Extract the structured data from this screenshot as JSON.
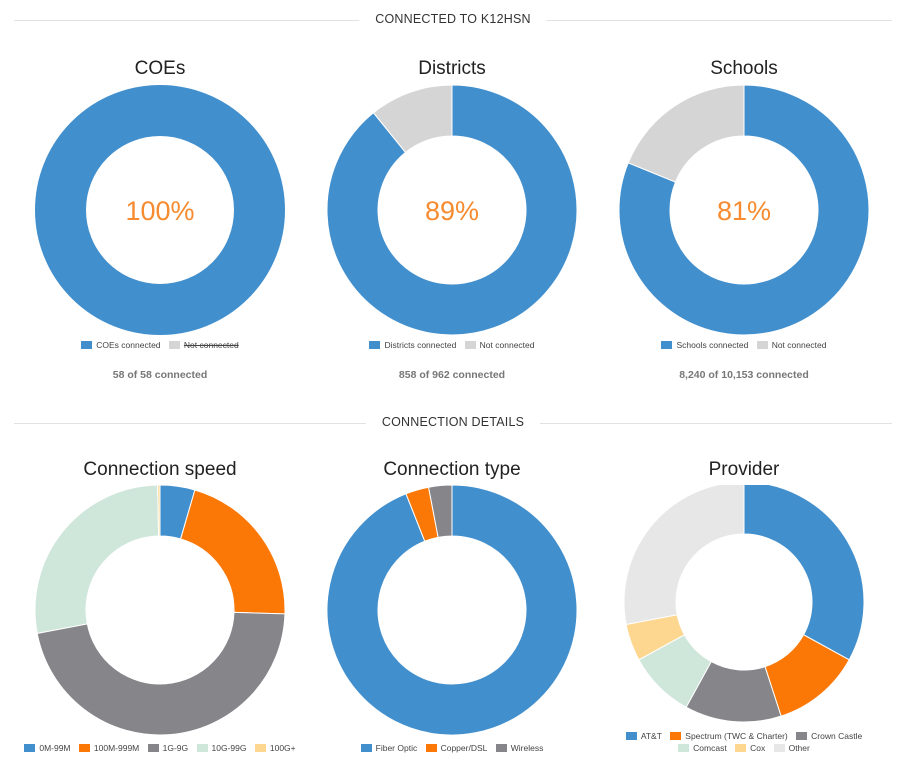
{
  "sections": {
    "top_title": "CONNECTED TO K12HSN",
    "bottom_title": "CONNECTION DETAILS"
  },
  "colors": {
    "blue": "#428fcd",
    "gray_light": "#d5d5d5",
    "orange": "#fb7806",
    "gray_dark": "#85858a",
    "mint": "#cfe6da",
    "yellow": "#fdd78f",
    "light": "#e7e7e7",
    "center_text": "#f68b2f"
  },
  "charts": {
    "coes": {
      "title": "COEs",
      "center": "100%",
      "count": "58 of 58 connected",
      "legend": [
        "COEs connected",
        "Not connected"
      ]
    },
    "districts": {
      "title": "Districts",
      "center": "89%",
      "count": "858 of 962 connected",
      "legend": [
        "Districts connected",
        "Not connected"
      ]
    },
    "schools": {
      "title": "Schools",
      "center": "81%",
      "count": "8,240 of 10,153 connected",
      "legend": [
        "Schools connected",
        "Not connected"
      ]
    },
    "speed": {
      "title": "Connection speed",
      "legend": [
        "0M-99M",
        "100M-999M",
        "1G-9G",
        "10G-99G",
        "100G+"
      ]
    },
    "type": {
      "title": "Connection type",
      "legend": [
        "Fiber Optic",
        "Copper/DSL",
        "Wireless"
      ]
    },
    "provider": {
      "title": "Provider",
      "legend": [
        "AT&T",
        "Spectrum (TWC & Charter)",
        "Crown Castle",
        "Comcast",
        "Cox",
        "Other"
      ]
    }
  },
  "chart_data": [
    {
      "type": "pie",
      "title": "COEs",
      "categories": [
        "COEs connected",
        "Not connected"
      ],
      "values": [
        58,
        0
      ],
      "colors": [
        "#428fcd",
        "#d5d5d5"
      ]
    },
    {
      "type": "pie",
      "title": "Districts",
      "categories": [
        "Districts connected",
        "Not connected"
      ],
      "values": [
        858,
        104
      ],
      "colors": [
        "#428fcd",
        "#d5d5d5"
      ]
    },
    {
      "type": "pie",
      "title": "Schools",
      "categories": [
        "Schools connected",
        "Not connected"
      ],
      "values": [
        8240,
        1913
      ],
      "colors": [
        "#428fcd",
        "#d5d5d5"
      ]
    },
    {
      "type": "pie",
      "title": "Connection speed",
      "categories": [
        "0M-99M",
        "100M-999M",
        "1G-9G",
        "10G-99G",
        "100G+"
      ],
      "values": [
        4.5,
        21,
        46.5,
        27.7,
        0.3
      ],
      "colors": [
        "#428fcd",
        "#fb7806",
        "#85858a",
        "#cfe6da",
        "#fdd78f"
      ]
    },
    {
      "type": "pie",
      "title": "Connection type",
      "categories": [
        "Fiber Optic",
        "Copper/DSL",
        "Wireless"
      ],
      "values": [
        94,
        3,
        3
      ],
      "colors": [
        "#428fcd",
        "#fb7806",
        "#85858a"
      ]
    },
    {
      "type": "pie",
      "title": "Provider",
      "categories": [
        "AT&T",
        "Spectrum (TWC & Charter)",
        "Crown Castle",
        "Comcast",
        "Cox",
        "Other"
      ],
      "values": [
        33,
        12,
        13,
        9,
        5,
        28
      ],
      "colors": [
        "#428fcd",
        "#fb7806",
        "#85858a",
        "#cfe6da",
        "#fdd78f",
        "#e7e7e7"
      ]
    }
  ]
}
